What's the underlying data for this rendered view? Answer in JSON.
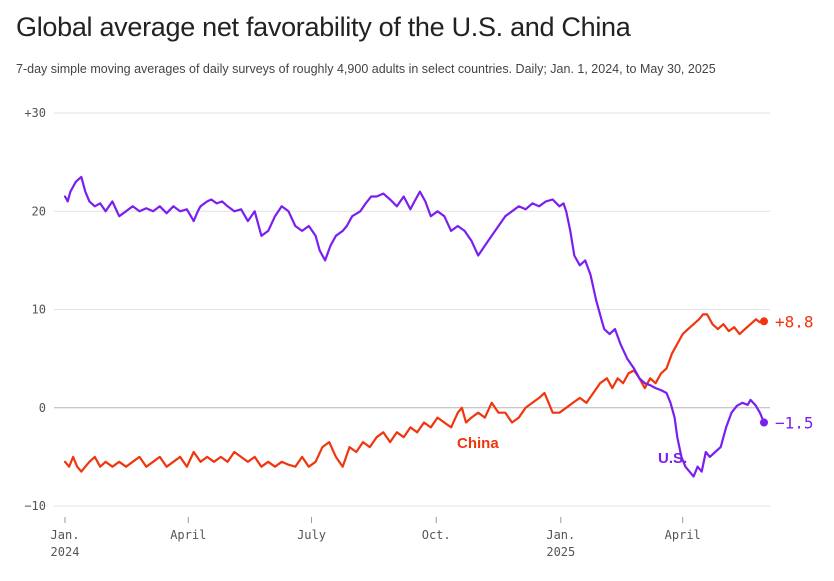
{
  "header": {
    "title": "Global average net favorability of the U.S. and China",
    "subtitle": "7-day simple moving averages of daily surveys of roughly 4,900 adults in select countries. Daily; Jan. 1, 2024, to May 30, 2025"
  },
  "colors": {
    "us": "#7a1ff0",
    "china": "#f0350f",
    "grid": "#e2e2e2",
    "zero": "#b5b5b5",
    "text": "#555555"
  },
  "chart_data": {
    "type": "line",
    "title": "Global average net favorability of the U.S. and China",
    "ylim": [
      -10,
      30
    ],
    "yticks": [
      {
        "value": 30,
        "label": "+30"
      },
      {
        "value": 20,
        "label": "20"
      },
      {
        "value": 10,
        "label": "10"
      },
      {
        "value": 0,
        "label": "0"
      },
      {
        "value": -10,
        "label": "−10"
      }
    ],
    "x_domain_days": [
      0,
      516
    ],
    "xticks": [
      {
        "day": 0,
        "label": "Jan.",
        "sublabel": "2024"
      },
      {
        "day": 91,
        "label": "April",
        "sublabel": ""
      },
      {
        "day": 182,
        "label": "July",
        "sublabel": ""
      },
      {
        "day": 274,
        "label": "Oct.",
        "sublabel": ""
      },
      {
        "day": 366,
        "label": "Jan.",
        "sublabel": "2025"
      },
      {
        "day": 456,
        "label": "April",
        "sublabel": ""
      }
    ],
    "series": [
      {
        "name": "U.S.",
        "label": "U.S.",
        "end_label": "−1.5",
        "end_value": -1.5,
        "points": [
          [
            0,
            21.5
          ],
          [
            2,
            21
          ],
          [
            4,
            22
          ],
          [
            8,
            23
          ],
          [
            12,
            23.5
          ],
          [
            15,
            22
          ],
          [
            18,
            21
          ],
          [
            22,
            20.5
          ],
          [
            26,
            20.8
          ],
          [
            30,
            20
          ],
          [
            35,
            21
          ],
          [
            40,
            19.5
          ],
          [
            45,
            20
          ],
          [
            50,
            20.5
          ],
          [
            55,
            20
          ],
          [
            60,
            20.3
          ],
          [
            65,
            20
          ],
          [
            70,
            20.5
          ],
          [
            75,
            19.8
          ],
          [
            80,
            20.5
          ],
          [
            85,
            20
          ],
          [
            90,
            20.2
          ],
          [
            95,
            19
          ],
          [
            98,
            20
          ],
          [
            100,
            20.5
          ],
          [
            105,
            21
          ],
          [
            108,
            21.2
          ],
          [
            112,
            20.8
          ],
          [
            116,
            21
          ],
          [
            120,
            20.5
          ],
          [
            125,
            20
          ],
          [
            130,
            20.2
          ],
          [
            135,
            19
          ],
          [
            140,
            20
          ],
          [
            145,
            17.5
          ],
          [
            150,
            18
          ],
          [
            155,
            19.5
          ],
          [
            160,
            20.5
          ],
          [
            165,
            20
          ],
          [
            170,
            18.5
          ],
          [
            175,
            18
          ],
          [
            180,
            18.5
          ],
          [
            185,
            17.5
          ],
          [
            188,
            16
          ],
          [
            192,
            15
          ],
          [
            196,
            16.5
          ],
          [
            200,
            17.5
          ],
          [
            205,
            18
          ],
          [
            208,
            18.5
          ],
          [
            212,
            19.5
          ],
          [
            218,
            20
          ],
          [
            222,
            20.8
          ],
          [
            226,
            21.5
          ],
          [
            230,
            21.5
          ],
          [
            235,
            21.8
          ],
          [
            240,
            21.2
          ],
          [
            245,
            20.5
          ],
          [
            250,
            21.5
          ],
          [
            255,
            20.2
          ],
          [
            258,
            21
          ],
          [
            262,
            22
          ],
          [
            266,
            21
          ],
          [
            270,
            19.5
          ],
          [
            275,
            20
          ],
          [
            280,
            19.5
          ],
          [
            285,
            18
          ],
          [
            290,
            18.5
          ],
          [
            295,
            18
          ],
          [
            300,
            17
          ],
          [
            305,
            15.5
          ],
          [
            310,
            16.5
          ],
          [
            315,
            17.5
          ],
          [
            320,
            18.5
          ],
          [
            325,
            19.5
          ],
          [
            330,
            20
          ],
          [
            335,
            20.5
          ],
          [
            340,
            20.2
          ],
          [
            345,
            20.8
          ],
          [
            350,
            20.5
          ],
          [
            355,
            21
          ],
          [
            360,
            21.2
          ],
          [
            365,
            20.5
          ],
          [
            368,
            20.8
          ],
          [
            370,
            20
          ],
          [
            373,
            18
          ],
          [
            376,
            15.5
          ],
          [
            380,
            14.5
          ],
          [
            384,
            15
          ],
          [
            388,
            13.5
          ],
          [
            392,
            11
          ],
          [
            396,
            9
          ],
          [
            398,
            8
          ],
          [
            402,
            7.5
          ],
          [
            406,
            8
          ],
          [
            410,
            6.5
          ],
          [
            415,
            5
          ],
          [
            420,
            4
          ],
          [
            424,
            3
          ],
          [
            428,
            2.5
          ],
          [
            432,
            2.3
          ],
          [
            436,
            2
          ],
          [
            440,
            1.8
          ],
          [
            444,
            1.5
          ],
          [
            447,
            0.5
          ],
          [
            450,
            -1
          ],
          [
            452,
            -3
          ],
          [
            455,
            -5
          ],
          [
            458,
            -6
          ],
          [
            461,
            -6.5
          ],
          [
            464,
            -7
          ],
          [
            467,
            -6
          ],
          [
            470,
            -6.5
          ],
          [
            473,
            -4.5
          ],
          [
            476,
            -5
          ],
          [
            480,
            -4.5
          ],
          [
            484,
            -4
          ],
          [
            488,
            -2
          ],
          [
            492,
            -0.5
          ],
          [
            496,
            0.2
          ],
          [
            500,
            0.5
          ],
          [
            504,
            0.3
          ],
          [
            506,
            0.8
          ],
          [
            510,
            0.2
          ],
          [
            513,
            -0.5
          ],
          [
            516,
            -1.5
          ]
        ]
      },
      {
        "name": "China",
        "label": "China",
        "end_label": "+8.8",
        "end_value": 8.8,
        "points": [
          [
            0,
            -5.5
          ],
          [
            3,
            -6
          ],
          [
            6,
            -5
          ],
          [
            9,
            -6
          ],
          [
            12,
            -6.5
          ],
          [
            15,
            -6
          ],
          [
            18,
            -5.5
          ],
          [
            22,
            -5
          ],
          [
            26,
            -6
          ],
          [
            30,
            -5.5
          ],
          [
            35,
            -6
          ],
          [
            40,
            -5.5
          ],
          [
            45,
            -6
          ],
          [
            50,
            -5.5
          ],
          [
            55,
            -5
          ],
          [
            60,
            -6
          ],
          [
            65,
            -5.5
          ],
          [
            70,
            -5
          ],
          [
            75,
            -6
          ],
          [
            80,
            -5.5
          ],
          [
            85,
            -5
          ],
          [
            90,
            -6
          ],
          [
            95,
            -4.5
          ],
          [
            100,
            -5.5
          ],
          [
            105,
            -5
          ],
          [
            110,
            -5.5
          ],
          [
            115,
            -5
          ],
          [
            120,
            -5.5
          ],
          [
            125,
            -4.5
          ],
          [
            130,
            -5
          ],
          [
            135,
            -5.5
          ],
          [
            140,
            -5
          ],
          [
            145,
            -6
          ],
          [
            150,
            -5.5
          ],
          [
            155,
            -6
          ],
          [
            160,
            -5.5
          ],
          [
            165,
            -5.8
          ],
          [
            170,
            -6
          ],
          [
            175,
            -5
          ],
          [
            180,
            -6
          ],
          [
            185,
            -5.5
          ],
          [
            190,
            -4
          ],
          [
            195,
            -3.5
          ],
          [
            200,
            -5
          ],
          [
            205,
            -6
          ],
          [
            210,
            -4
          ],
          [
            215,
            -4.5
          ],
          [
            220,
            -3.5
          ],
          [
            225,
            -4
          ],
          [
            230,
            -3
          ],
          [
            235,
            -2.5
          ],
          [
            240,
            -3.5
          ],
          [
            245,
            -2.5
          ],
          [
            250,
            -3
          ],
          [
            255,
            -2
          ],
          [
            260,
            -2.5
          ],
          [
            265,
            -1.5
          ],
          [
            270,
            -2
          ],
          [
            275,
            -1
          ],
          [
            280,
            -1.5
          ],
          [
            285,
            -2
          ],
          [
            290,
            -0.5
          ],
          [
            293,
            0
          ],
          [
            296,
            -1.5
          ],
          [
            300,
            -1
          ],
          [
            305,
            -0.5
          ],
          [
            310,
            -1
          ],
          [
            315,
            0.5
          ],
          [
            320,
            -0.5
          ],
          [
            325,
            -0.5
          ],
          [
            330,
            -1.5
          ],
          [
            335,
            -1
          ],
          [
            340,
            0
          ],
          [
            345,
            0.5
          ],
          [
            350,
            1
          ],
          [
            354,
            1.5
          ],
          [
            357,
            0.5
          ],
          [
            360,
            -0.5
          ],
          [
            365,
            -0.5
          ],
          [
            370,
            0
          ],
          [
            375,
            0.5
          ],
          [
            380,
            1
          ],
          [
            385,
            0.5
          ],
          [
            390,
            1.5
          ],
          [
            395,
            2.5
          ],
          [
            400,
            3
          ],
          [
            404,
            2
          ],
          [
            408,
            3
          ],
          [
            412,
            2.5
          ],
          [
            416,
            3.5
          ],
          [
            420,
            3.8
          ],
          [
            424,
            3
          ],
          [
            428,
            2
          ],
          [
            432,
            3
          ],
          [
            436,
            2.5
          ],
          [
            440,
            3.5
          ],
          [
            444,
            4
          ],
          [
            448,
            5.5
          ],
          [
            452,
            6.5
          ],
          [
            456,
            7.5
          ],
          [
            460,
            8
          ],
          [
            464,
            8.5
          ],
          [
            468,
            9
          ],
          [
            471,
            9.5
          ],
          [
            474,
            9.5
          ],
          [
            478,
            8.5
          ],
          [
            482,
            8
          ],
          [
            486,
            8.5
          ],
          [
            490,
            7.8
          ],
          [
            494,
            8.2
          ],
          [
            498,
            7.5
          ],
          [
            502,
            8
          ],
          [
            506,
            8.5
          ],
          [
            510,
            9
          ],
          [
            513,
            8.7
          ],
          [
            516,
            8.8
          ]
        ]
      }
    ]
  }
}
